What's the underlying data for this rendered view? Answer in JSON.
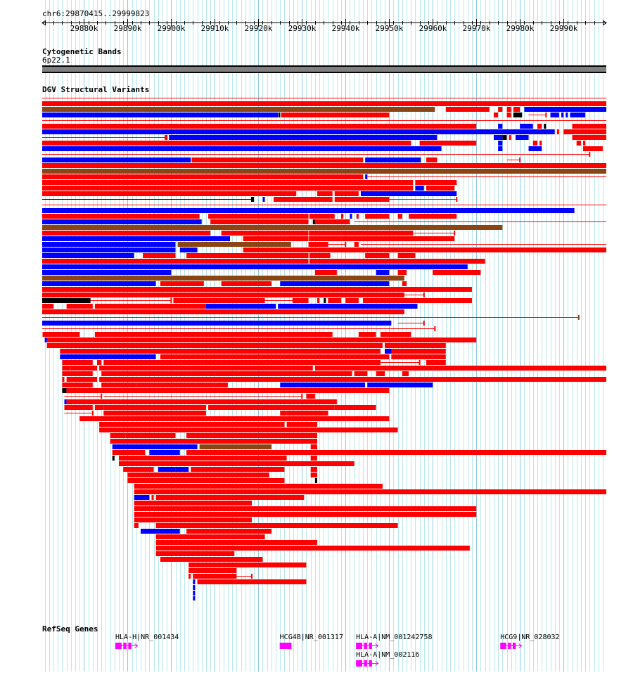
{
  "ruler": {
    "location": "chr6:29870415..29999823",
    "start": 29870415,
    "end": 29999823,
    "ticks": [
      "29880k",
      "29890k",
      "29900k",
      "29910k",
      "29920k",
      "29930k",
      "29940k",
      "29950k",
      "29960k",
      "29970k",
      "29980k",
      "29990k"
    ]
  },
  "cytoband": {
    "title": "Cytogenetic Bands",
    "band_name": "6p22.1",
    "color": "#808080"
  },
  "dgv": {
    "title": "DGV Structural Variants",
    "colors": {
      "loss": "#ff0000",
      "gain": "#0000ff",
      "both": "#8b4513",
      "other": "#000000"
    }
  },
  "sv_rows": [
    [
      [
        "l",
        0,
        130,
        "line"
      ]
    ],
    [
      [
        "l",
        0,
        130
      ]
    ],
    [
      [
        "b",
        0,
        90.5
      ],
      [
        "l",
        93,
        103
      ],
      [
        "l",
        105,
        106
      ],
      [
        "l",
        107,
        108
      ],
      [
        "l",
        108.5,
        110
      ],
      [
        "g",
        111,
        130
      ]
    ],
    [
      [
        "g",
        0,
        54.5
      ],
      [
        "o",
        54.6,
        55
      ],
      [
        "l",
        55.2,
        80
      ],
      [
        "l",
        104,
        105
      ],
      [
        "l",
        107,
        108
      ],
      [
        "o",
        108.5,
        110.5
      ],
      [
        "l",
        112,
        116,
        "line"
      ],
      [
        "g",
        117,
        119
      ],
      [
        "g",
        119.5,
        120
      ],
      [
        "g",
        120.5,
        121
      ],
      [
        "g",
        121.5,
        125
      ]
    ],
    [
      [
        "l",
        0,
        130,
        "line"
      ]
    ],
    [
      [
        "l",
        0,
        100
      ],
      [
        "g",
        105,
        106
      ],
      [
        "g",
        110,
        113
      ],
      [
        "l",
        114,
        115
      ],
      [
        "o",
        115.5,
        116
      ],
      [
        "l",
        122,
        130
      ]
    ],
    [
      [
        "g",
        0,
        118
      ],
      [
        "l",
        118.5,
        119
      ],
      [
        "l",
        120,
        130
      ]
    ],
    [
      [
        "l",
        0,
        29,
        "line"
      ],
      [
        "l",
        28.5,
        29
      ],
      [
        "g",
        29.5,
        91
      ],
      [
        "g",
        104,
        106
      ],
      [
        "o",
        106,
        107
      ],
      [
        "l",
        107.5,
        108
      ],
      [
        "g",
        109,
        112
      ],
      [
        "l",
        122,
        130
      ]
    ],
    [
      [
        "l",
        0,
        85
      ],
      [
        "l",
        87,
        89
      ],
      [
        "l",
        89,
        100
      ],
      [
        "g",
        105,
        106
      ],
      [
        "l",
        113,
        114
      ],
      [
        "l",
        114.5,
        115
      ],
      [
        "l",
        123,
        124
      ],
      [
        "l",
        124.5,
        125
      ]
    ],
    [
      [
        "g",
        0,
        92
      ],
      [
        "g",
        105,
        106
      ],
      [
        "g",
        112,
        115
      ],
      [
        "l",
        124.5,
        129
      ]
    ],
    [
      [
        "l",
        0,
        126,
        "line"
      ]
    ],
    [
      [
        "g",
        0,
        34.5
      ],
      [
        "l",
        34.7,
        74
      ],
      [
        "g",
        74.5,
        87.3
      ],
      [
        "l",
        88.5,
        91
      ],
      [
        "l",
        107,
        110,
        "line"
      ]
    ],
    [
      [
        "l",
        0,
        130
      ]
    ],
    [
      [
        "b",
        0,
        130
      ]
    ],
    [
      [
        "l",
        0,
        74
      ],
      [
        "g",
        74.5,
        75
      ],
      [
        "l",
        75,
        130,
        "line"
      ]
    ],
    [
      [
        "l",
        0,
        85.5
      ],
      [
        "l",
        86,
        95.5
      ]
    ],
    [
      [
        "l",
        0,
        85.5
      ],
      [
        "g",
        86,
        88
      ],
      [
        "l",
        88.5,
        95
      ]
    ],
    [
      [
        "l",
        0,
        58.7
      ],
      [
        "l",
        63.5,
        67
      ],
      [
        "l",
        67.5,
        73
      ],
      [
        "g",
        73.5,
        95.5
      ]
    ],
    [
      [
        "o",
        0,
        48.5,
        "line"
      ],
      [
        "o",
        48.5,
        49
      ],
      [
        "g",
        51,
        51.5
      ],
      [
        "l",
        53.5,
        60
      ],
      [
        "l",
        60,
        67
      ],
      [
        "l",
        67.5,
        71
      ],
      [
        "l",
        71,
        80
      ],
      [
        "l",
        80,
        95.5,
        "line"
      ]
    ],
    [
      [
        "l",
        0,
        130,
        "line"
      ]
    ],
    [
      [
        "g",
        0,
        122.5
      ]
    ],
    [
      [
        "l",
        0,
        36.5
      ],
      [
        "l",
        38.5,
        61.5
      ],
      [
        "l",
        61.7,
        66.5
      ],
      [
        "l",
        66.5,
        67.5
      ],
      [
        "l",
        69,
        69.5
      ],
      [
        "g",
        71,
        71.5
      ],
      [
        "l",
        72.5,
        73
      ],
      [
        "l",
        74.5,
        80
      ],
      [
        "l",
        82,
        83
      ],
      [
        "l",
        84.5,
        95.5
      ]
    ],
    [
      [
        "g",
        0,
        37
      ],
      [
        "l",
        39,
        61.5
      ],
      [
        "o",
        62.5,
        63
      ],
      [
        "l",
        63,
        71
      ],
      [
        "l",
        72,
        130,
        "line"
      ]
    ],
    [
      [
        "b",
        0,
        106
      ]
    ],
    [
      [
        "l",
        0,
        39
      ],
      [
        "l",
        41.5,
        61.5
      ],
      [
        "l",
        61.6,
        69
      ],
      [
        "l",
        69,
        85.5
      ],
      [
        "l",
        85.5,
        95,
        "line"
      ]
    ],
    [
      [
        "g",
        0,
        43.5
      ],
      [
        "l",
        46.5,
        61.5
      ],
      [
        "l",
        61.6,
        69
      ],
      [
        "l",
        69,
        95
      ]
    ],
    [
      [
        "g",
        0,
        31
      ],
      [
        "b",
        31.5,
        57.5
      ],
      [
        "l",
        61.5,
        66
      ],
      [
        "l",
        66,
        70,
        "line"
      ],
      [
        "l",
        72,
        73
      ],
      [
        "l",
        73.5,
        130,
        "line"
      ]
    ],
    [
      [
        "g",
        0,
        31
      ],
      [
        "g",
        32,
        36
      ],
      [
        "l",
        46.5,
        130
      ]
    ],
    [
      [
        "g",
        0,
        21.5
      ],
      [
        "l",
        23.5,
        31
      ],
      [
        "l",
        33.5,
        61.5
      ],
      [
        "l",
        61.7,
        66.5
      ],
      [
        "l",
        74.5,
        80
      ],
      [
        "l",
        82,
        86
      ]
    ],
    [
      [
        "l",
        0,
        61.5
      ],
      [
        "l",
        61.7,
        102
      ]
    ],
    [
      [
        "g",
        0,
        98
      ]
    ],
    [
      [
        "g",
        0,
        30
      ],
      [
        "l",
        63,
        68
      ],
      [
        "g",
        77,
        80
      ],
      [
        "l",
        82,
        84
      ],
      [
        "l",
        90,
        101
      ]
    ],
    [
      [
        "b",
        0,
        83.5
      ]
    ],
    [
      [
        "g",
        0,
        26.5
      ],
      [
        "l",
        27.5,
        37.5
      ],
      [
        "l",
        41.5,
        53
      ],
      [
        "g",
        55,
        80
      ],
      [
        "l",
        83,
        84
      ]
    ],
    [
      [
        "l",
        0,
        99
      ]
    ],
    [
      [
        "l",
        0,
        83.5
      ],
      [
        "l",
        83.5,
        88,
        "line"
      ]
    ],
    [
      [
        "o",
        0,
        11.5
      ],
      [
        "l",
        11.5,
        30,
        "line"
      ],
      [
        "l",
        30.5,
        51.5
      ],
      [
        "l",
        51.5,
        58,
        "line"
      ],
      [
        "l",
        58,
        61.5
      ],
      [
        "l",
        63.5,
        64
      ],
      [
        "o",
        65,
        65.5
      ],
      [
        "l",
        66,
        69
      ],
      [
        "l",
        70,
        73
      ],
      [
        "l",
        74,
        99
      ]
    ],
    [
      [
        "l",
        0,
        3
      ],
      [
        "l",
        6,
        12
      ],
      [
        "l",
        12.5,
        38
      ],
      [
        "g",
        38,
        54
      ],
      [
        "g",
        54.5,
        86.5
      ]
    ],
    [
      [
        "l",
        0,
        83.5
      ]
    ],
    [
      [
        "b",
        0,
        123.5,
        "line"
      ]
    ],
    [
      [
        "g",
        0,
        80.5
      ],
      [
        "l",
        82,
        88,
        "line"
      ]
    ],
    [
      [
        "l",
        0,
        90.5,
        "line"
      ]
    ],
    [
      [
        "l",
        0.5,
        9
      ],
      [
        "l",
        12.5,
        67
      ],
      [
        "l",
        73,
        77
      ],
      [
        "l",
        78,
        85
      ]
    ],
    [
      [
        "g",
        1,
        1.5
      ],
      [
        "l",
        1.5,
        100
      ]
    ],
    [
      [
        "l",
        1.5,
        78.5
      ],
      [
        "l",
        79,
        80
      ],
      [
        "l",
        79,
        93
      ]
    ],
    [
      [
        "l",
        4.5,
        78
      ],
      [
        "g",
        79,
        81
      ],
      [
        "l",
        80.5,
        93
      ]
    ],
    [
      [
        "g",
        4.5,
        26.5
      ],
      [
        "l",
        27.5,
        43.5
      ],
      [
        "l",
        43.5,
        74
      ],
      [
        "l",
        74,
        80
      ],
      [
        "l",
        80.5,
        90
      ],
      [
        "l",
        90,
        93
      ]
    ],
    [
      [
        "l",
        5,
        12
      ],
      [
        "l",
        13,
        14
      ],
      [
        "l",
        14.5,
        78
      ],
      [
        "l",
        78,
        87,
        "line"
      ],
      [
        "l",
        88.5,
        93
      ]
    ],
    [
      [
        "l",
        5,
        7
      ],
      [
        "l",
        7,
        13
      ],
      [
        "l",
        13.5,
        62.5
      ],
      [
        "l",
        63,
        74
      ],
      [
        "l",
        74,
        90
      ],
      [
        "l",
        90,
        130
      ]
    ],
    [
      [
        "l",
        5,
        12
      ],
      [
        "l",
        14,
        40
      ],
      [
        "l",
        40,
        56
      ],
      [
        "l",
        56,
        71.5
      ],
      [
        "l",
        72,
        75
      ],
      [
        "l",
        77,
        79
      ],
      [
        "l",
        83,
        84.5
      ]
    ],
    [
      [
        "l",
        5,
        5.5
      ],
      [
        "l",
        6,
        13
      ],
      [
        "l",
        13.5,
        130
      ]
    ],
    [
      [
        "l",
        5,
        12
      ],
      [
        "l",
        14,
        22
      ],
      [
        "l",
        22,
        40
      ],
      [
        "l",
        40,
        43
      ],
      [
        "g",
        55,
        74.5
      ],
      [
        "g",
        75,
        83.5
      ],
      [
        "g",
        83.5,
        90
      ]
    ],
    [
      [
        "o",
        5,
        6
      ],
      [
        "l",
        6,
        80
      ]
    ],
    [
      [
        "l",
        5.5,
        14,
        "line"
      ],
      [
        "l",
        14.5,
        60,
        "line"
      ],
      [
        "l",
        61,
        63
      ]
    ],
    [
      [
        "g",
        5.5,
        6
      ],
      [
        "l",
        6,
        68
      ]
    ],
    [
      [
        "l",
        5.5,
        12
      ],
      [
        "l",
        12.5,
        14.5
      ],
      [
        "l",
        14.5,
        38
      ],
      [
        "l",
        38.5,
        67.5
      ],
      [
        "l",
        67.5,
        77
      ]
    ],
    [
      [
        "l",
        5.5,
        12,
        "line"
      ],
      [
        "l",
        14.5,
        38
      ],
      [
        "l",
        55,
        56.5
      ],
      [
        "l",
        56.5,
        65
      ],
      [
        "l",
        65,
        66
      ]
    ],
    [
      [
        "l",
        9,
        80
      ]
    ],
    [
      [
        "l",
        13.5,
        55
      ],
      [
        "l",
        55,
        56
      ],
      [
        "l",
        56.5,
        63.5
      ]
    ],
    [
      [
        "l",
        13.5,
        82
      ]
    ],
    [
      [
        "l",
        16,
        19.5
      ],
      [
        "l",
        19.5,
        31
      ],
      [
        "l",
        33.5,
        63.5
      ]
    ],
    [
      [
        "l",
        16,
        63.5
      ]
    ],
    [
      [
        "g",
        16.5,
        36
      ],
      [
        "b",
        36.5,
        53
      ],
      [
        "l",
        62,
        63.5
      ]
    ],
    [
      [
        "l",
        16.5,
        24
      ],
      [
        "g",
        25,
        28
      ],
      [
        "g",
        28,
        32
      ],
      [
        "l",
        33.5,
        130
      ]
    ],
    [
      [
        "o",
        16.5,
        17
      ],
      [
        "l",
        18,
        56.5
      ],
      [
        "l",
        62,
        63.5
      ]
    ],
    [
      [
        "l",
        18,
        72
      ]
    ],
    [
      [
        "l",
        19,
        26
      ],
      [
        "g",
        27,
        31
      ],
      [
        "g",
        31,
        34
      ],
      [
        "l",
        34.5,
        56
      ],
      [
        "l",
        62,
        63.5
      ]
    ],
    [
      [
        "l",
        20,
        52.5
      ],
      [
        "l",
        62,
        63.5
      ]
    ],
    [
      [
        "l",
        20,
        56
      ],
      [
        "o",
        63,
        63.5
      ]
    ],
    [
      [
        "l",
        21.5,
        78.5
      ]
    ],
    [
      [
        "l",
        21.5,
        130
      ]
    ],
    [
      [
        "g",
        21.5,
        25
      ],
      [
        "l",
        25.5,
        26
      ],
      [
        "l",
        26.5,
        60.5
      ]
    ],
    [
      [
        "l",
        21.5,
        48.5
      ]
    ],
    [
      [
        "l",
        21.5,
        100
      ]
    ],
    [
      [
        "l",
        21.5,
        100
      ]
    ],
    [
      [
        "l",
        21.5,
        48.5
      ]
    ],
    [
      [
        "l",
        21.5,
        22.5
      ],
      [
        "l",
        26.5,
        82
      ]
    ],
    [
      [
        "g",
        23,
        32
      ],
      [
        "l",
        33.5,
        53
      ]
    ],
    [
      [
        "l",
        26.5,
        51.5
      ]
    ],
    [
      [
        "l",
        26.5,
        63.5
      ]
    ],
    [
      [
        "l",
        26.5,
        98.5
      ]
    ],
    [
      [
        "l",
        26.5,
        44.5
      ]
    ],
    [
      [
        "l",
        27.5,
        51
      ]
    ],
    [
      [
        "l",
        34,
        61
      ]
    ],
    [
      [
        "l",
        34,
        45
      ]
    ],
    [
      [
        "l",
        34,
        34.5
      ],
      [
        "l",
        35,
        45
      ],
      [
        "l",
        45,
        48.5,
        "line"
      ]
    ],
    [
      [
        "g",
        35,
        35.5
      ],
      [
        "l",
        36,
        61
      ]
    ],
    [
      [
        "g",
        35,
        35.5
      ]
    ],
    [
      [
        "g",
        35,
        35.5
      ]
    ],
    [
      [
        "g",
        35,
        35.5
      ]
    ]
  ],
  "refseq": {
    "title": "RefSeq Genes",
    "color": "#ff00ff",
    "genes": [
      {
        "label": "HLA-H|NR_001434",
        "start": 17.2,
        "end": 22.3,
        "row": 0
      },
      {
        "label": "HCG4B|NR_001317",
        "start": 54.9,
        "end": 57.6,
        "row": 0
      },
      {
        "label": "HLA-A|NM_001242758",
        "start": 72.4,
        "end": 77.5,
        "row": 0
      },
      {
        "label": "HLA-A|NM_002116",
        "start": 72.4,
        "end": 77.5,
        "row": 1
      },
      {
        "label": "HCG9|NR_028032",
        "start": 105.5,
        "end": 110.4,
        "row": 0
      }
    ]
  }
}
